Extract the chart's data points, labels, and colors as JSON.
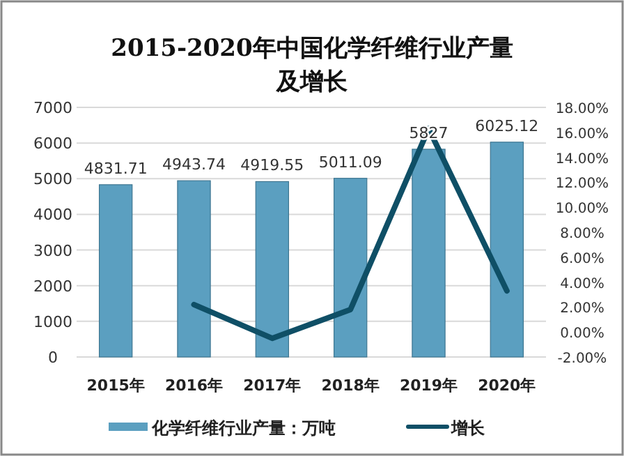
{
  "chart_data": {
    "type": "bar",
    "title": "2015-2020年中国化学纤维行业产量及增长",
    "categories": [
      "2015年",
      "2016年",
      "2017年",
      "2018年",
      "2019年",
      "2020年"
    ],
    "series": [
      {
        "name": "化学纤维行业产量：万吨",
        "color": "#5b9fc0",
        "values": [
          4831.71,
          4943.74,
          4919.55,
          5011.09,
          5827,
          6025.12
        ],
        "value_labels": [
          "4831.71",
          "4943.74",
          "4919.55",
          "5011.09",
          "5827",
          "6025.12"
        ]
      },
      {
        "name": "增长",
        "type": "line",
        "axis": "y2",
        "color": "#0f4f66",
        "values": [
          null,
          2.2,
          -0.5,
          1.8,
          16.3,
          3.3
        ]
      }
    ],
    "ylim": [
      0,
      7000
    ],
    "yticks": [
      0,
      1000,
      2000,
      3000,
      4000,
      5000,
      6000,
      7000
    ],
    "y2lim": [
      -2,
      18
    ],
    "y2ticks": [
      {
        "value": -2,
        "label": "-2.00%"
      },
      {
        "value": 0,
        "label": "0.00%"
      },
      {
        "value": 2,
        "label": "2.00%"
      },
      {
        "value": 4,
        "label": "4.00%"
      },
      {
        "value": 6,
        "label": "6.00%"
      },
      {
        "value": 8,
        "label": "8.00%"
      },
      {
        "value": 10,
        "label": "10.00%"
      },
      {
        "value": 12,
        "label": "12.00%"
      },
      {
        "value": 14,
        "label": "14.00%"
      },
      {
        "value": 16,
        "label": "16.00%"
      },
      {
        "value": 18,
        "label": "18.00%"
      }
    ],
    "grid": "y",
    "legend": "bottom"
  }
}
